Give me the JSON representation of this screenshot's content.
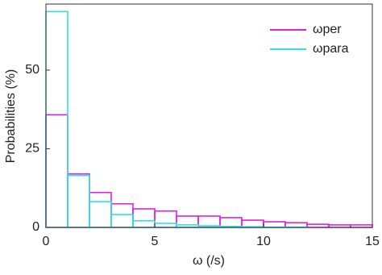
{
  "chart_data": {
    "type": "histogram",
    "xlabel": "ω (/s)",
    "ylabel": "Probabilities (%)",
    "bins": [
      0,
      1,
      2,
      3,
      4,
      5,
      6,
      7,
      8,
      9,
      10,
      11,
      12,
      13,
      14,
      15
    ],
    "series": [
      {
        "name": "ωper",
        "color": "#e020e0",
        "values": [
          35.8,
          17.0,
          11.1,
          7.5,
          5.9,
          5.2,
          3.6,
          3.6,
          3.1,
          2.3,
          1.8,
          1.5,
          1.0,
          0.8,
          0.8
        ]
      },
      {
        "name": "ωpara",
        "color": "#30e0e8",
        "values": [
          68.6,
          16.5,
          8.2,
          4.1,
          2.1,
          1.3,
          0.8,
          0.5,
          0.3,
          0.2,
          0.1,
          0.1,
          0,
          0,
          0
        ]
      }
    ],
    "xlim": [
      0,
      15
    ],
    "ylim": [
      0,
      71
    ],
    "xticks": [
      0,
      5,
      10,
      15
    ],
    "yticks": [
      0,
      25,
      50
    ],
    "legend": "upper right"
  }
}
